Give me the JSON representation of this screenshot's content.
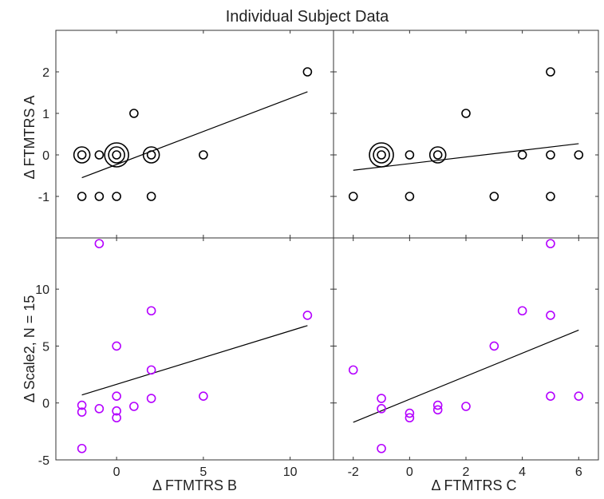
{
  "title": "Individual Subject Data",
  "colors": {
    "top": "#000000",
    "bottom": "#b400ff",
    "fit": "#000000",
    "frame": "#333333"
  },
  "labels": {
    "y_top": "Δ FTMTRS A",
    "y_bottom": "Δ Scale2, N = 15",
    "x_left": "Δ FTMTRS B",
    "x_right": "Δ FTMTRS C"
  },
  "chart_data": [
    {
      "type": "scatter",
      "panel": "top-left",
      "xlim": [
        -3.5,
        12.5
      ],
      "ylim": [
        -2,
        3
      ],
      "xticks": [
        0,
        5,
        10
      ],
      "yticks": [
        -1,
        0,
        1,
        2
      ],
      "xtick_labels": [],
      "ytick_labels": [
        "-1",
        "0",
        "1",
        "2"
      ],
      "color": "top",
      "points": [
        {
          "x": -2,
          "y": -1,
          "n": 1
        },
        {
          "x": -1,
          "y": -1,
          "n": 1
        },
        {
          "x": 0,
          "y": -1,
          "n": 1
        },
        {
          "x": 2,
          "y": -1,
          "n": 1
        },
        {
          "x": -2,
          "y": 0,
          "n": 2
        },
        {
          "x": -1,
          "y": 0,
          "n": 1
        },
        {
          "x": 0,
          "y": 0,
          "n": 3
        },
        {
          "x": 2,
          "y": 0,
          "n": 2
        },
        {
          "x": 5,
          "y": 0,
          "n": 1
        },
        {
          "x": 1,
          "y": 1,
          "n": 1
        },
        {
          "x": 11,
          "y": 2,
          "n": 1
        }
      ],
      "fit": {
        "x": [
          -2,
          11
        ],
        "y": [
          -0.55,
          1.52
        ]
      }
    },
    {
      "type": "scatter",
      "panel": "top-right",
      "xlim": [
        -2.7,
        6.7
      ],
      "ylim": [
        -2,
        3
      ],
      "xticks": [
        -2,
        0,
        2,
        4,
        6
      ],
      "yticks": [
        -1,
        0,
        1,
        2
      ],
      "xtick_labels": [],
      "ytick_labels": [],
      "color": "top",
      "points": [
        {
          "x": -2,
          "y": -1,
          "n": 1
        },
        {
          "x": 0,
          "y": -1,
          "n": 1
        },
        {
          "x": 3,
          "y": -1,
          "n": 1
        },
        {
          "x": 5,
          "y": -1,
          "n": 1
        },
        {
          "x": -1,
          "y": 0,
          "n": 3
        },
        {
          "x": 0,
          "y": 0,
          "n": 1
        },
        {
          "x": 1,
          "y": 0,
          "n": 2
        },
        {
          "x": 4,
          "y": 0,
          "n": 1
        },
        {
          "x": 5,
          "y": 0,
          "n": 1
        },
        {
          "x": 6,
          "y": 0,
          "n": 1
        },
        {
          "x": 2,
          "y": 1,
          "n": 1
        },
        {
          "x": 5,
          "y": 2,
          "n": 1
        }
      ],
      "fit": {
        "x": [
          -2,
          6
        ],
        "y": [
          -0.37,
          0.27
        ]
      }
    },
    {
      "type": "scatter",
      "panel": "bottom-left",
      "xlim": [
        -3.5,
        12.5
      ],
      "ylim": [
        -5,
        14.5
      ],
      "xticks": [
        0,
        5,
        10
      ],
      "yticks": [
        -5,
        0,
        5,
        10
      ],
      "xtick_labels": [
        "0",
        "5",
        "10"
      ],
      "ytick_labels": [
        "-5",
        "0",
        "5",
        "10"
      ],
      "color": "bottom",
      "points": [
        {
          "x": -2,
          "y": -0.2
        },
        {
          "x": -2,
          "y": -0.8
        },
        {
          "x": -2,
          "y": -4
        },
        {
          "x": -1,
          "y": 14
        },
        {
          "x": -1,
          "y": -0.5
        },
        {
          "x": 0,
          "y": 5
        },
        {
          "x": 0,
          "y": 0.6
        },
        {
          "x": 0,
          "y": -0.7
        },
        {
          "x": 0,
          "y": -1.3
        },
        {
          "x": 1,
          "y": -0.3
        },
        {
          "x": 2,
          "y": 8.1
        },
        {
          "x": 2,
          "y": 2.9
        },
        {
          "x": 2,
          "y": 0.4
        },
        {
          "x": 5,
          "y": 0.6
        },
        {
          "x": 11,
          "y": 7.7
        }
      ],
      "fit": {
        "x": [
          -2,
          11
        ],
        "y": [
          0.7,
          6.8
        ]
      }
    },
    {
      "type": "scatter",
      "panel": "bottom-right",
      "xlim": [
        -2.7,
        6.7
      ],
      "ylim": [
        -5,
        14.5
      ],
      "xticks": [
        -2,
        0,
        2,
        4,
        6
      ],
      "yticks": [
        -5,
        0,
        5,
        10
      ],
      "xtick_labels": [
        "-2",
        "0",
        "2",
        "4",
        "6"
      ],
      "ytick_labels": [],
      "color": "bottom",
      "points": [
        {
          "x": -2,
          "y": 2.9
        },
        {
          "x": -1,
          "y": 0.4
        },
        {
          "x": -1,
          "y": -0.5
        },
        {
          "x": -1,
          "y": -4
        },
        {
          "x": 0,
          "y": -0.9
        },
        {
          "x": 0,
          "y": -1.3
        },
        {
          "x": 1,
          "y": -0.2
        },
        {
          "x": 1,
          "y": -0.6
        },
        {
          "x": 2,
          "y": -0.3
        },
        {
          "x": 3,
          "y": 5
        },
        {
          "x": 4,
          "y": 8.1
        },
        {
          "x": 5,
          "y": 14
        },
        {
          "x": 5,
          "y": 7.7
        },
        {
          "x": 5,
          "y": 0.6
        },
        {
          "x": 6,
          "y": 0.6
        }
      ],
      "fit": {
        "x": [
          -2,
          6
        ],
        "y": [
          -1.7,
          6.4
        ]
      }
    }
  ]
}
